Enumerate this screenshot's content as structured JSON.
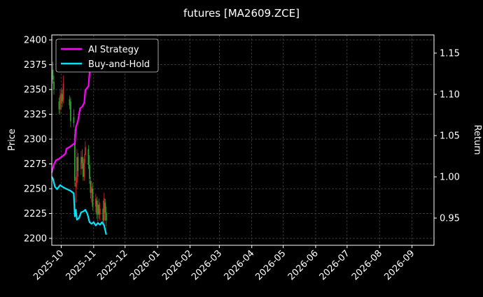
{
  "chart_data": {
    "type": "line",
    "title": "futures [MA2609.ZCE]",
    "ylabel": "Price",
    "y2label": "Return",
    "xlabel": "",
    "x_ticks": [
      "2025-10",
      "2025-11",
      "2025-12",
      "2026-01",
      "2026-02",
      "2026-03",
      "2026-04",
      "2026-05",
      "2026-06",
      "2026-07",
      "2026-08",
      "2026-09"
    ],
    "xlim": [
      "2025-09-22",
      "2026-09-22"
    ],
    "ylim": [
      2193,
      2405
    ],
    "y_ticks": [
      2200,
      2225,
      2250,
      2275,
      2300,
      2325,
      2350,
      2375,
      2400
    ],
    "y2lim": [
      0.917,
      1.172
    ],
    "y2_ticks": [
      "0.95",
      "1.00",
      "1.05",
      "1.10",
      "1.15"
    ],
    "grid": true,
    "legend_position": "upper-left",
    "colors": {
      "up": "#d62728",
      "down": "#2ca02c",
      "ai": "#ff00ff",
      "bh": "#00e5ff",
      "background": "#000000"
    },
    "series": [
      {
        "name": "AI Strategy",
        "axis": "right",
        "points": [
          [
            "2025-09-22",
            1.005
          ],
          [
            "2025-09-24",
            1.015
          ],
          [
            "2025-09-26",
            1.02
          ],
          [
            "2025-09-29",
            1.022
          ],
          [
            "2025-10-02",
            1.025
          ],
          [
            "2025-10-05",
            1.028
          ],
          [
            "2025-10-06",
            1.034
          ],
          [
            "2025-10-10",
            1.037
          ],
          [
            "2025-10-13",
            1.04
          ],
          [
            "2025-10-14",
            1.04
          ],
          [
            "2025-10-15",
            1.06
          ],
          [
            "2025-10-17",
            1.068
          ],
          [
            "2025-10-19",
            1.083
          ],
          [
            "2025-10-21",
            1.085
          ],
          [
            "2025-10-23",
            1.09
          ],
          [
            "2025-10-24",
            1.105
          ],
          [
            "2025-10-27",
            1.11
          ],
          [
            "2025-10-29",
            1.14
          ],
          [
            "2025-11-01",
            1.155
          ],
          [
            "2025-11-05",
            1.158
          ],
          [
            "2025-11-10",
            1.163
          ],
          [
            "2025-11-13",
            1.166
          ]
        ]
      },
      {
        "name": "Buy-and-Hold",
        "axis": "right",
        "points": [
          [
            "2025-09-22",
            1.0
          ],
          [
            "2025-09-23",
            0.998
          ],
          [
            "2025-09-25",
            0.988
          ],
          [
            "2025-09-27",
            0.985
          ],
          [
            "2025-09-30",
            0.99
          ],
          [
            "2025-10-02",
            0.988
          ],
          [
            "2025-10-05",
            0.986
          ],
          [
            "2025-10-10",
            0.983
          ],
          [
            "2025-10-13",
            0.98
          ],
          [
            "2025-10-14",
            0.952
          ],
          [
            "2025-10-15",
            0.96
          ],
          [
            "2025-10-16",
            0.948
          ],
          [
            "2025-10-18",
            0.95
          ],
          [
            "2025-10-20",
            0.957
          ],
          [
            "2025-10-22",
            0.958
          ],
          [
            "2025-10-24",
            0.96
          ],
          [
            "2025-10-26",
            0.955
          ],
          [
            "2025-10-28",
            0.945
          ],
          [
            "2025-10-30",
            0.943
          ],
          [
            "2025-11-01",
            0.945
          ],
          [
            "2025-11-03",
            0.941
          ],
          [
            "2025-11-05",
            0.944
          ],
          [
            "2025-11-07",
            0.942
          ],
          [
            "2025-11-09",
            0.945
          ],
          [
            "2025-11-11",
            0.941
          ],
          [
            "2025-11-13",
            0.93
          ]
        ]
      },
      {
        "name": "MA2609.ZCE",
        "axis": "left",
        "type": "candlestick",
        "fields": [
          "date",
          "open",
          "high",
          "low",
          "close"
        ],
        "points": [
          [
            "2025-09-23",
            2370,
            2378,
            2356,
            2360
          ],
          [
            "2025-09-24",
            2358,
            2364,
            2345,
            2350
          ],
          [
            "2025-09-29",
            2338,
            2342,
            2325,
            2330
          ],
          [
            "2025-09-30",
            2330,
            2350,
            2326,
            2344
          ],
          [
            "2025-10-01",
            2336,
            2352,
            2330,
            2346
          ],
          [
            "2025-10-02",
            2345,
            2350,
            2332,
            2338
          ],
          [
            "2025-10-03",
            2340,
            2364,
            2336,
            2356
          ],
          [
            "2025-10-09",
            2340,
            2344,
            2330,
            2334
          ],
          [
            "2025-10-10",
            2338,
            2342,
            2312,
            2318
          ],
          [
            "2025-10-13",
            2322,
            2330,
            2312,
            2316
          ],
          [
            "2025-10-14",
            2305,
            2310,
            2252,
            2258
          ],
          [
            "2025-10-15",
            2252,
            2262,
            2236,
            2256
          ],
          [
            "2025-10-16",
            2256,
            2290,
            2250,
            2282
          ],
          [
            "2025-10-17",
            2282,
            2286,
            2262,
            2268
          ],
          [
            "2025-10-20",
            2270,
            2288,
            2264,
            2282
          ],
          [
            "2025-10-21",
            2282,
            2290,
            2270,
            2276
          ],
          [
            "2025-10-22",
            2276,
            2282,
            2258,
            2262
          ],
          [
            "2025-10-23",
            2262,
            2285,
            2258,
            2280
          ],
          [
            "2025-10-24",
            2284,
            2298,
            2276,
            2292
          ],
          [
            "2025-10-27",
            2290,
            2294,
            2270,
            2274
          ],
          [
            "2025-10-28",
            2274,
            2284,
            2255,
            2260
          ],
          [
            "2025-10-29",
            2258,
            2262,
            2240,
            2246
          ],
          [
            "2025-10-30",
            2246,
            2258,
            2236,
            2252
          ],
          [
            "2025-10-31",
            2250,
            2256,
            2228,
            2232
          ],
          [
            "2025-11-03",
            2232,
            2245,
            2226,
            2240
          ],
          [
            "2025-11-04",
            2238,
            2242,
            2220,
            2224
          ],
          [
            "2025-11-05",
            2224,
            2238,
            2216,
            2234
          ],
          [
            "2025-11-06",
            2234,
            2240,
            2220,
            2224
          ],
          [
            "2025-11-07",
            2224,
            2236,
            2218,
            2230
          ],
          [
            "2025-11-10",
            2230,
            2238,
            2214,
            2218
          ],
          [
            "2025-11-11",
            2218,
            2246,
            2214,
            2240
          ],
          [
            "2025-11-12",
            2236,
            2240,
            2218,
            2226
          ],
          [
            "2025-11-13",
            2226,
            2232,
            2212,
            2218
          ]
        ]
      }
    ]
  }
}
